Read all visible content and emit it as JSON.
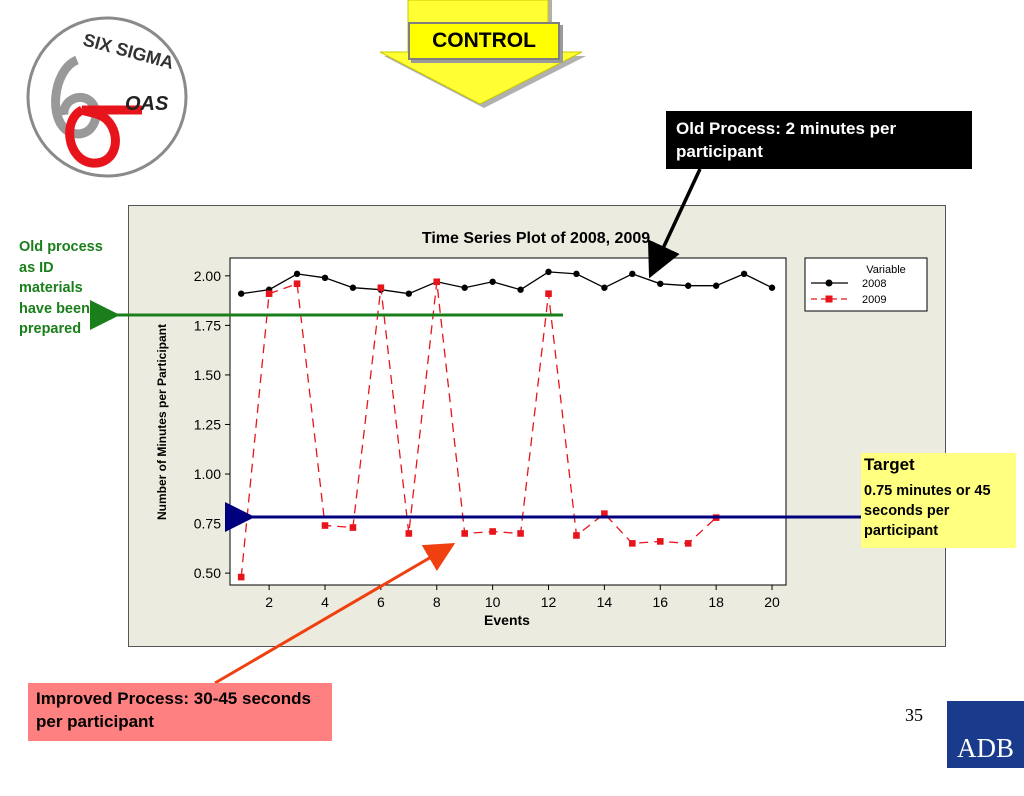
{
  "logo": {
    "arc_text": "SIX SIGMA",
    "brand_text": "OAS"
  },
  "control_label": "CONTROL",
  "old_process_note": "Old Process:  2 minutes per participant",
  "left_annotation": "Old process as ID materials have been prepared",
  "target": {
    "title": "Target",
    "text": "0.75 minutes or 45 seconds per participant"
  },
  "improved_note": "Improved Process:  30-45 seconds per participant",
  "page_number": "35",
  "footer_logo": "ADB",
  "colors": {
    "series_2008": "#000000",
    "series_2009": "#e8141c",
    "target_arrow": "#00007f",
    "old_arrow": "#1a7f1a",
    "improved_arrow": "#f04010",
    "callout_arrow": "#000000"
  },
  "chart_data": {
    "type": "line",
    "title": "Time Series Plot of 2008, 2009",
    "xlabel": "Events",
    "ylabel": "Number of Minutes per Participant",
    "xlim": [
      0.6,
      20.5
    ],
    "ylim": [
      0.44,
      2.09
    ],
    "xticks": [
      2,
      4,
      6,
      8,
      10,
      12,
      14,
      16,
      18,
      20
    ],
    "yticks": [
      "0.50",
      "0.75",
      "1.00",
      "1.25",
      "1.50",
      "1.75",
      "2.00"
    ],
    "legend": {
      "title": "Variable",
      "position": "top-right"
    },
    "target_value": 0.75,
    "old_process_value": 1.81,
    "series": [
      {
        "name": "2008",
        "marker": "circle",
        "line": "solid",
        "x": [
          1,
          2,
          3,
          4,
          5,
          6,
          7,
          8,
          9,
          10,
          11,
          12,
          13,
          14,
          15,
          16,
          17,
          18,
          19,
          20
        ],
        "y": [
          1.91,
          1.93,
          2.01,
          1.99,
          1.94,
          1.93,
          1.91,
          1.97,
          1.94,
          1.97,
          1.93,
          2.02,
          2.01,
          1.94,
          2.01,
          1.96,
          1.95,
          1.95,
          2.01,
          1.94
        ]
      },
      {
        "name": "2009",
        "marker": "square",
        "line": "dashed",
        "x": [
          1,
          2,
          3,
          4,
          5,
          6,
          7,
          8,
          9,
          10,
          11,
          12,
          13,
          14,
          15,
          16,
          17,
          18
        ],
        "y": [
          0.48,
          1.91,
          1.96,
          0.74,
          0.73,
          1.94,
          0.7,
          1.97,
          0.7,
          0.71,
          0.7,
          1.91,
          0.69,
          0.8,
          0.65,
          0.66,
          0.65,
          0.78
        ]
      }
    ]
  }
}
